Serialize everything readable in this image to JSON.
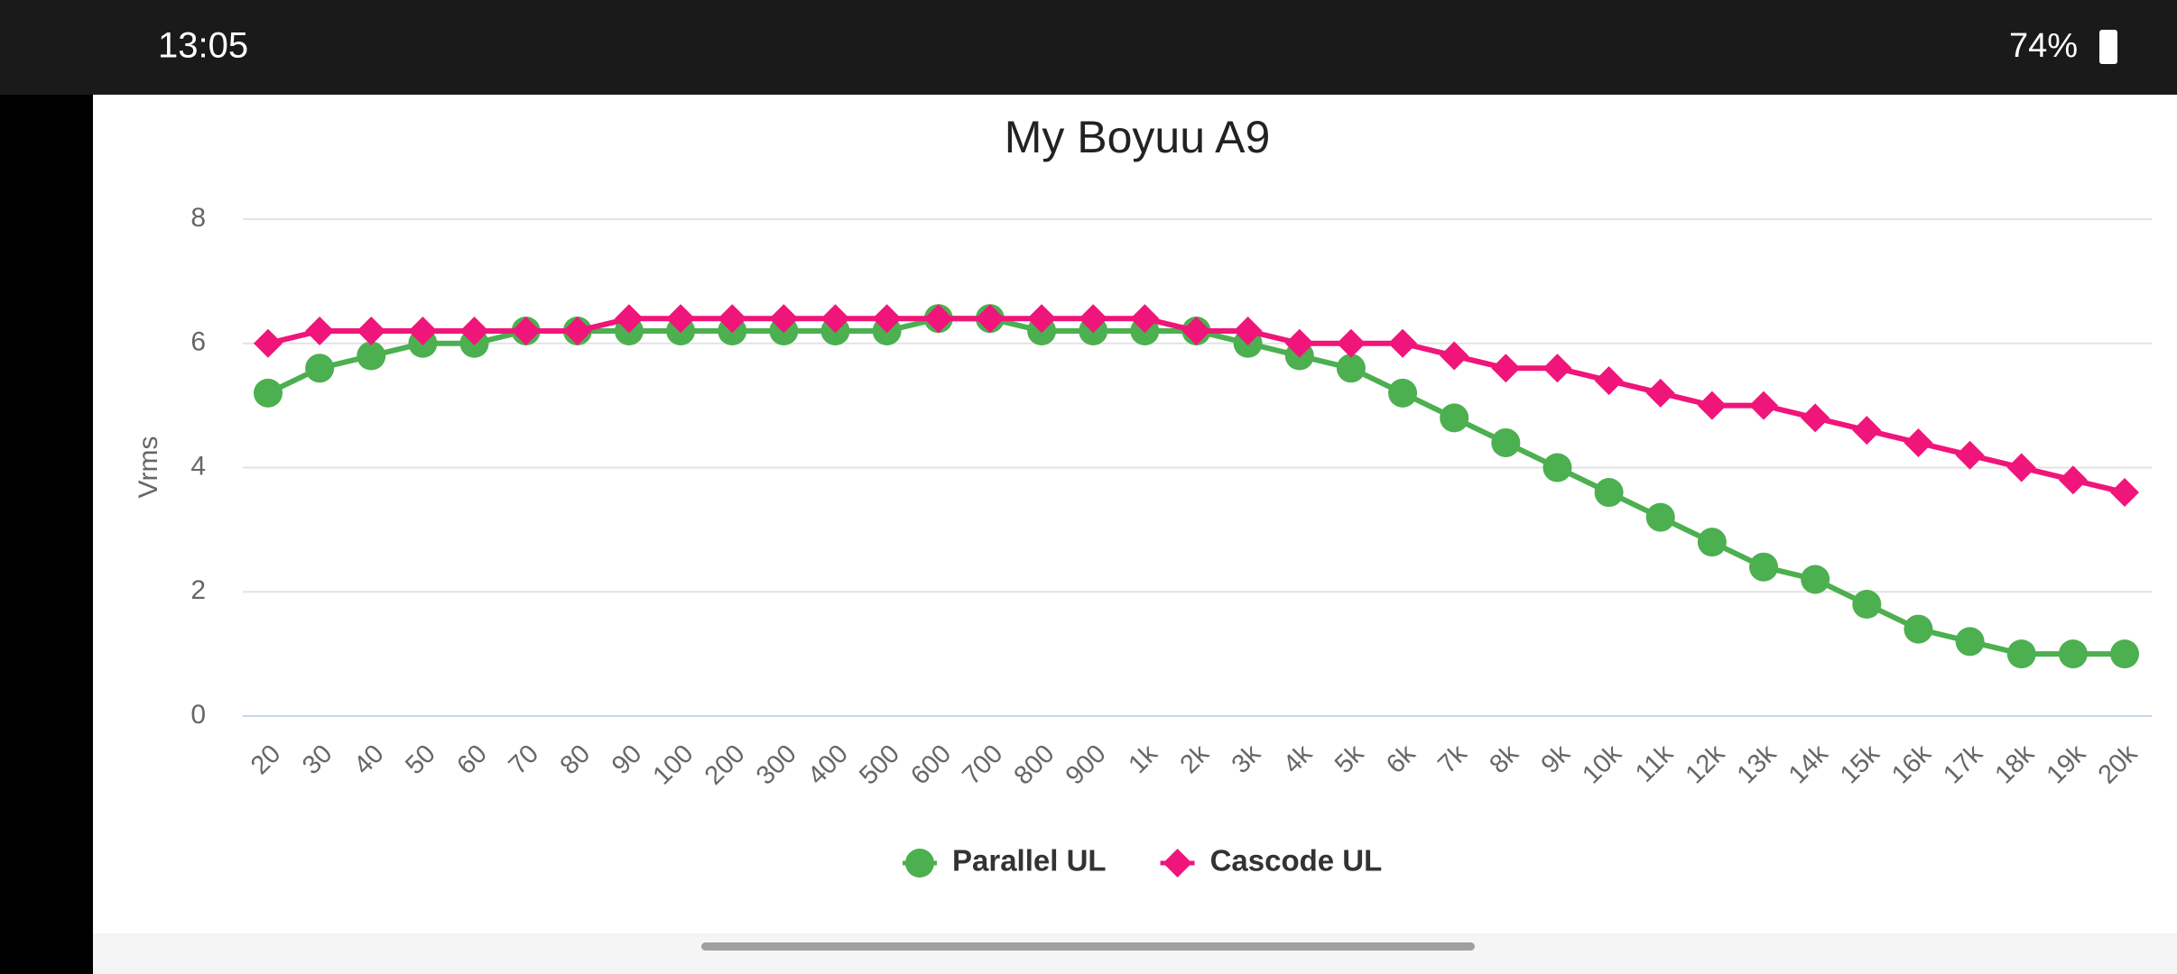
{
  "status_bar": {
    "time": "13:05",
    "battery": "74%"
  },
  "chart_data": {
    "type": "line",
    "title": "My Boyuu A9",
    "y_label": "Vrms",
    "categories": [
      "20",
      "30",
      "40",
      "50",
      "60",
      "70",
      "80",
      "90",
      "100",
      "200",
      "300",
      "400",
      "500",
      "600",
      "700",
      "800",
      "900",
      "1k",
      "2k",
      "3k",
      "4k",
      "5k",
      "6k",
      "7k",
      "8k",
      "9k",
      "10k",
      "11k",
      "12k",
      "13k",
      "14k",
      "15k",
      "16k",
      "17k",
      "18k",
      "19k",
      "20k"
    ],
    "series": [
      {
        "name": "Parallel UL",
        "color": "#4caf50",
        "marker": "circle",
        "values": [
          5.2,
          5.6,
          5.8,
          6.0,
          6.0,
          6.2,
          6.2,
          6.2,
          6.2,
          6.2,
          6.2,
          6.2,
          6.2,
          6.4,
          6.4,
          6.2,
          6.2,
          6.2,
          6.2,
          6.0,
          5.8,
          5.6,
          5.2,
          4.8,
          4.4,
          4.0,
          3.6,
          3.2,
          2.8,
          2.4,
          2.2,
          1.8,
          1.4,
          1.2,
          1.0,
          1.0,
          1.0
        ]
      },
      {
        "name": "Cascode UL",
        "color": "#f0157a",
        "marker": "diamond",
        "values": [
          6.0,
          6.2,
          6.2,
          6.2,
          6.2,
          6.2,
          6.2,
          6.4,
          6.4,
          6.4,
          6.4,
          6.4,
          6.4,
          6.4,
          6.4,
          6.4,
          6.4,
          6.4,
          6.2,
          6.2,
          6.0,
          6.0,
          6.0,
          5.8,
          5.6,
          5.6,
          5.4,
          5.2,
          5.0,
          5.0,
          4.8,
          4.6,
          4.4,
          4.2,
          4.0,
          3.8,
          3.6
        ]
      }
    ],
    "ylim": [
      0,
      8
    ],
    "yticks": [
      0,
      2,
      4,
      6,
      8
    ],
    "grid": true,
    "legend": "bottom"
  }
}
